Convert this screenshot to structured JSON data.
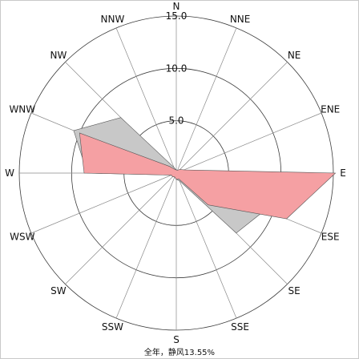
{
  "chart_data": {
    "type": "radar",
    "directions": [
      "N",
      "NNE",
      "NE",
      "ENE",
      "E",
      "ESE",
      "SE",
      "SSE",
      "S",
      "SSW",
      "SW",
      "WSW",
      "W",
      "WNW",
      "NW",
      "NNW"
    ],
    "rings": [
      "5.0",
      "10.0",
      "15.0"
    ],
    "rmax": 15,
    "series": [
      {
        "color": "#c8c8c8",
        "values": [
          0.3,
          0.3,
          0.4,
          0.8,
          1.2,
          9.2,
          8.1,
          0.8,
          0.6,
          0.4,
          0.5,
          0.5,
          8.5,
          10.6,
          7.5,
          0.6
        ]
      },
      {
        "color": "#f5a0a3",
        "values": [
          0.3,
          0.3,
          0.5,
          0.8,
          15.2,
          11.4,
          4.3,
          0.6,
          0.6,
          0.4,
          0.5,
          0.5,
          8.8,
          10.0,
          0.9,
          0.4
        ]
      }
    ],
    "caption": "全年，静风13.55%"
  }
}
